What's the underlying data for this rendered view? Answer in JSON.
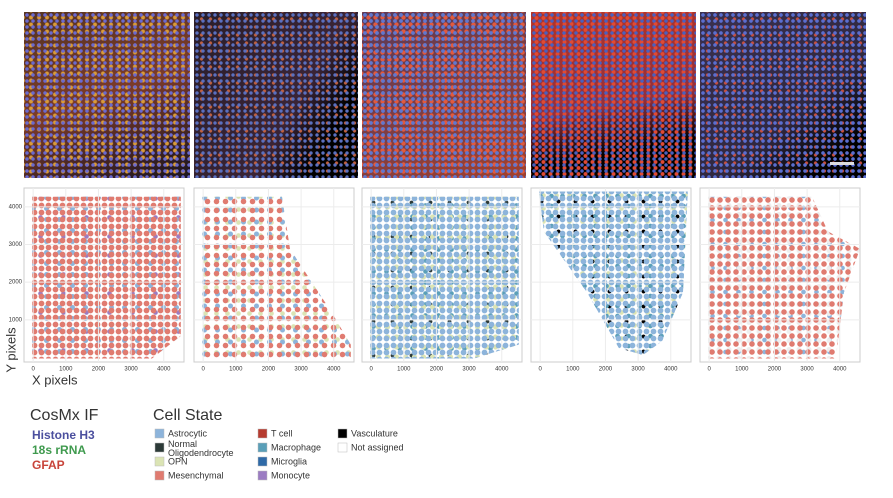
{
  "figure": {
    "plots": {
      "x_label": "X pixels",
      "y_label": "Y pixels",
      "xlim": [
        -280,
        4620
      ],
      "ylim": [
        -120,
        4500
      ],
      "xticks": [
        0,
        1000,
        2000,
        3000,
        4000
      ],
      "yticks": [
        1000,
        2000,
        3000,
        4000
      ],
      "grid": true
    },
    "legend_if": {
      "title": "CosMx IF",
      "items": [
        {
          "label": "Histone H3",
          "color": "#4b4f9e"
        },
        {
          "label": "18s rRNA",
          "color": "#3f9a4e"
        },
        {
          "label": "GFAP",
          "color": "#c8443a"
        }
      ]
    },
    "legend_cell": {
      "title": "Cell State",
      "items": [
        {
          "label": "Astrocytic",
          "color": "#8db4db"
        },
        {
          "label": "Normal Oligodendrocyte",
          "color": "#2c3a38"
        },
        {
          "label": "OPN",
          "color": "#dbe4b4"
        },
        {
          "label": "Mesenchymal",
          "color": "#e07b70"
        },
        {
          "label": "T cell",
          "color": "#b63b2f"
        },
        {
          "label": "Macrophage",
          "color": "#5a9fb8"
        },
        {
          "label": "Microglia",
          "color": "#2f6aa7"
        },
        {
          "label": "Monocyte",
          "color": "#9b7cc2"
        },
        {
          "label": "Vasculature",
          "color": "#000000"
        },
        {
          "label": "Not assigned",
          "color": "#ffffff"
        }
      ]
    }
  }
}
